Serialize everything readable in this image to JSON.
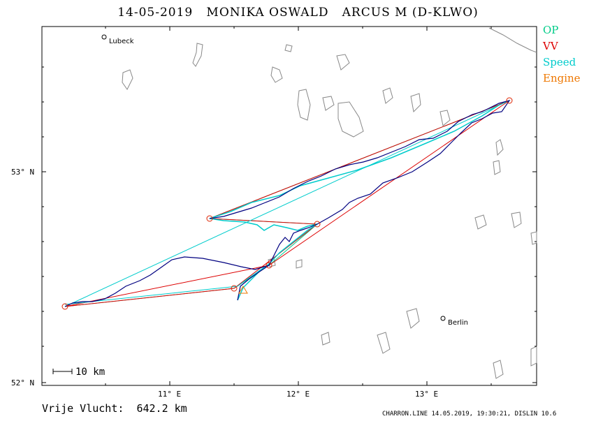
{
  "title": "14-05-2019   MONIKA OSWALD   ARCUS M (D-KLWO)",
  "legend": [
    {
      "label": "OP",
      "color": "#00cc88"
    },
    {
      "label": "VV",
      "color": "#dd0000"
    },
    {
      "label": "Speed",
      "color": "#00cccc"
    },
    {
      "label": "Engine",
      "color": "#ee7700"
    }
  ],
  "axes": {
    "lat_labels": [
      "53° N",
      "52° N"
    ],
    "lon_labels": [
      "11° E",
      "12° E",
      "13° E"
    ]
  },
  "cities": [
    {
      "name": "Lubeck"
    },
    {
      "name": "Berlin"
    }
  ],
  "scale_label": "10  km",
  "distance": "Vrije Vlucht:  642.2 km",
  "footer": "CHARRON.LINE 14.05.2019, 19:30:21, DISLIN 10.6",
  "colors": {
    "track": "#000080",
    "op": "#00cc88",
    "vv": "#dd0000",
    "speed": "#00cccc",
    "turnpoint": "#dd2200",
    "coast": "#888888"
  }
}
